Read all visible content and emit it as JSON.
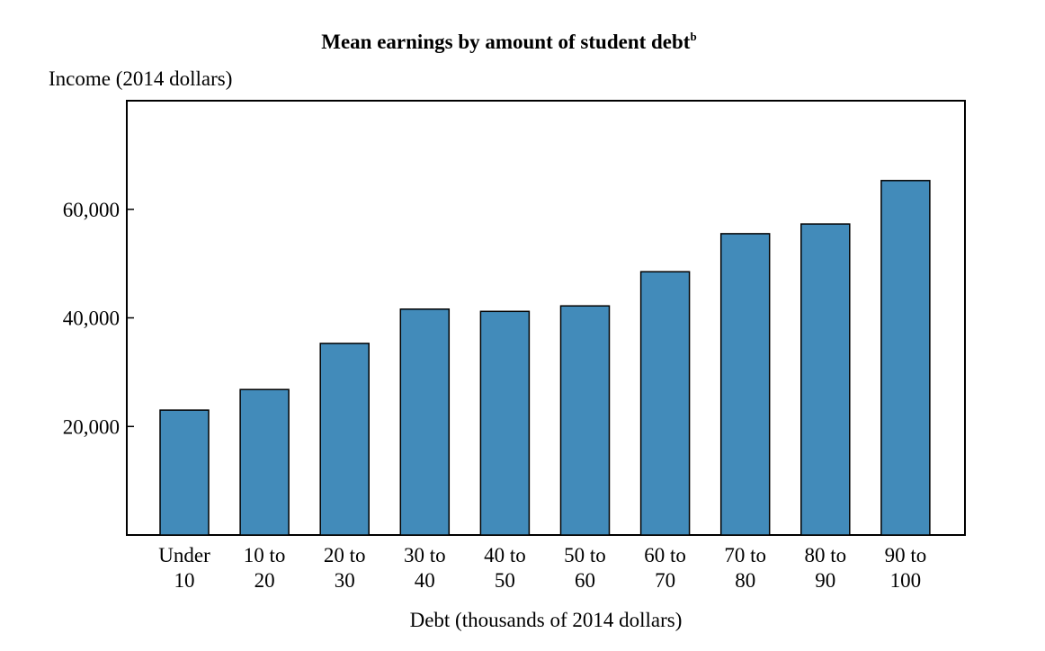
{
  "chart_data": {
    "type": "bar",
    "title": "Mean earnings by amount of student debt",
    "title_superscript": "b",
    "ylabel": "Income (2014 dollars)",
    "xlabel": "Debt (thousands of 2014 dollars)",
    "categories": [
      [
        "Under",
        "10"
      ],
      [
        "10 to",
        "20"
      ],
      [
        "20 to",
        "30"
      ],
      [
        "30 to",
        "40"
      ],
      [
        "40 to",
        "50"
      ],
      [
        "50 to",
        "60"
      ],
      [
        "60 to",
        "70"
      ],
      [
        "70 to",
        "80"
      ],
      [
        "80 to",
        "90"
      ],
      [
        "90 to",
        "100"
      ]
    ],
    "values": [
      23000,
      26800,
      35300,
      41600,
      41200,
      42200,
      48500,
      55500,
      57300,
      65300
    ],
    "ylim": [
      0,
      80000
    ],
    "yticks": [
      20000,
      40000,
      60000
    ],
    "ytick_labels": [
      "20,000",
      "40,000",
      "60,000"
    ],
    "bar_color": "#428bba",
    "grid": false,
    "legend": "none"
  }
}
